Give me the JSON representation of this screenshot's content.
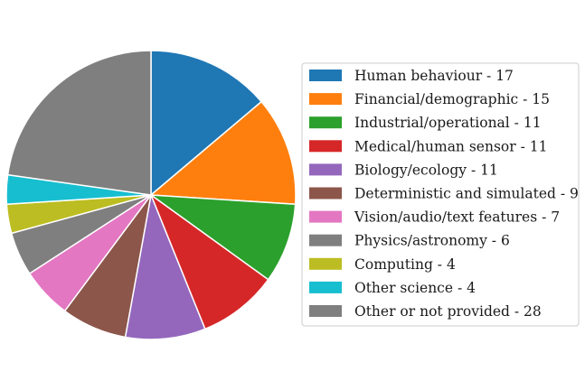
{
  "chart_data": {
    "type": "pie",
    "title": "",
    "start_angle_deg": 90,
    "direction": "clockwise",
    "legend_position": "right",
    "slices": [
      {
        "label": "Human behaviour - 17",
        "value": 17,
        "color": "#1f77b4"
      },
      {
        "label": "Financial/demographic - 15",
        "value": 15,
        "color": "#ff7f0e"
      },
      {
        "label": "Industrial/operational - 11",
        "value": 11,
        "color": "#2ca02c"
      },
      {
        "label": "Medical/human sensor - 11",
        "value": 11,
        "color": "#d62728"
      },
      {
        "label": "Biology/ecology - 11",
        "value": 11,
        "color": "#9467bd"
      },
      {
        "label": "Deterministic and simulated - 9",
        "value": 9,
        "color": "#8c564b"
      },
      {
        "label": "Vision/audio/text features - 7",
        "value": 7,
        "color": "#e377c2"
      },
      {
        "label": "Physics/astronomy - 6",
        "value": 6,
        "color": "#7f7f7f"
      },
      {
        "label": "Computing - 4",
        "value": 4,
        "color": "#bcbd22"
      },
      {
        "label": "Other science - 4",
        "value": 4,
        "color": "#17becf"
      },
      {
        "label": "Other or not provided - 28",
        "value": 28,
        "color": "#7f7f7f"
      }
    ]
  }
}
